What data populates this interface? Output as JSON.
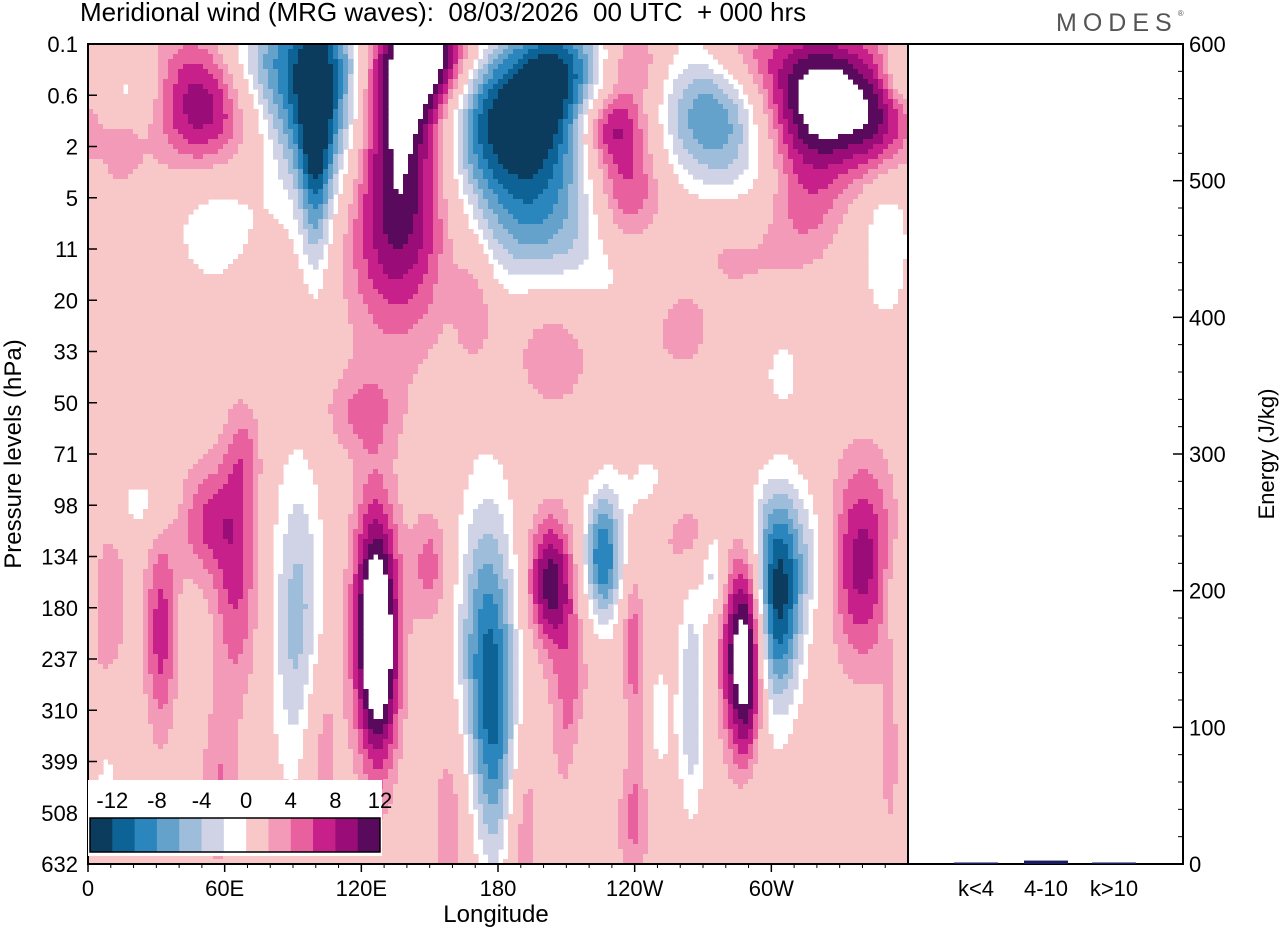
{
  "title": "Meridional wind (MRG waves):  08/03/2026  00 UTC  + 000 hrs",
  "logo": "MODES",
  "logo_mark": "®",
  "colors": {
    "neg": [
      "#0b3c5d",
      "#0e6396",
      "#2b86bd",
      "#64a2cc",
      "#9dbddb",
      "#d0d3e6"
    ],
    "zero": "#ffffff",
    "pos": [
      "#f8c8c8",
      "#f39ab9",
      "#e8609e",
      "#c7208a",
      "#9a0d78",
      "#5a0a5c"
    ],
    "bar": "#1a1a5e"
  },
  "chart_data": [
    {
      "type": "heatmap",
      "title": "Meridional wind (MRG waves)",
      "xlabel": "Longitude",
      "ylabel": "Pressure levels (hPa)",
      "x_ticks": [
        "0",
        "60E",
        "120E",
        "180",
        "120W",
        "60W"
      ],
      "y_ticks": [
        "0.1",
        "0.6",
        "2",
        "5",
        "11",
        "20",
        "33",
        "50",
        "71",
        "98",
        "134",
        "180",
        "237",
        "310",
        "399",
        "508",
        "632"
      ],
      "colorbar_labels": [
        "-12",
        "-8",
        "-4",
        "0",
        "4",
        "8",
        "12"
      ],
      "colorbar_levels": [
        -14,
        -12,
        -10,
        -8,
        -6,
        -4,
        -2,
        2,
        4,
        6,
        8,
        10,
        12,
        14
      ],
      "blobs": [
        {
          "lon": 102,
          "lev": 0.8,
          "amp": -15,
          "w": 16,
          "h": 1.5
        },
        {
          "lon": 72,
          "lev": 0.4,
          "amp": -6,
          "w": 14,
          "h": 0.8
        },
        {
          "lon": 100,
          "lev": 2.5,
          "amp": -8,
          "w": 5,
          "h": 1.5
        },
        {
          "lon": 140,
          "lev": 0.6,
          "amp": 13,
          "w": 14,
          "h": 1.1
        },
        {
          "lon": 156,
          "lev": 0.1,
          "amp": 8,
          "w": 10,
          "h": 0.8
        },
        {
          "lon": 136,
          "lev": 3.0,
          "amp": 12,
          "w": 16,
          "h": 1.8
        },
        {
          "lon": 52,
          "lev": 1.2,
          "amp": 11,
          "w": 16,
          "h": 1.0
        },
        {
          "lon": 182,
          "lev": 1.4,
          "amp": -13,
          "w": 24,
          "h": 1.0
        },
        {
          "lon": 206,
          "lev": 0.4,
          "amp": -10,
          "w": 14,
          "h": 0.9
        },
        {
          "lon": 194,
          "lev": 3.2,
          "amp": -9,
          "w": 20,
          "h": 1.2
        },
        {
          "lon": 228,
          "lev": 1.6,
          "amp": 8,
          "w": 10,
          "h": 0.5
        },
        {
          "lon": 236,
          "lev": 2.9,
          "amp": 9,
          "w": 12,
          "h": 1.0
        },
        {
          "lon": 276,
          "lev": 1.4,
          "amp": -11,
          "w": 18,
          "h": 1.1
        },
        {
          "lon": 240,
          "lev": 0.4,
          "amp": 5,
          "w": 10,
          "h": 0.6
        },
        {
          "lon": 322,
          "lev": 1.1,
          "amp": 15,
          "w": 20,
          "h": 1.0
        },
        {
          "lon": 286,
          "lev": 0.2,
          "amp": 5,
          "w": 14,
          "h": 0.6
        },
        {
          "lon": 348,
          "lev": 1.6,
          "amp": 5,
          "w": 10,
          "h": 0.7
        },
        {
          "lon": 357,
          "lev": 0.6,
          "amp": -5,
          "w": 6,
          "h": 0.4
        },
        {
          "lon": 18,
          "lev": 1.0,
          "amp": -4,
          "w": 10,
          "h": 0.5
        },
        {
          "lon": 15,
          "lev": 2.0,
          "amp": 3,
          "w": 6,
          "h": 0.6
        },
        {
          "lon": 55,
          "lev": 3.2,
          "amp": -4,
          "w": 14,
          "h": 1.1
        },
        {
          "lon": 293,
          "lev": 3.0,
          "amp": -3,
          "w": 14,
          "h": 0.8
        },
        {
          "lon": 314,
          "lev": 3.2,
          "amp": 4,
          "w": 12,
          "h": 0.8
        },
        {
          "lon": 284,
          "lev": 3.6,
          "amp": 4,
          "w": 18,
          "h": 1.0
        },
        {
          "lon": 232,
          "lev": 4.0,
          "amp": -4,
          "w": 18,
          "h": 1.0
        },
        {
          "lon": 350,
          "lev": 3.8,
          "amp": -4,
          "w": 8,
          "h": 1.2
        },
        {
          "lon": 204,
          "lev": 5.8,
          "amp": 4,
          "w": 14,
          "h": 1.0
        },
        {
          "lon": 260,
          "lev": 5.6,
          "amp": 4,
          "w": 8,
          "h": 0.5
        },
        {
          "lon": 120,
          "lev": 7.2,
          "amp": 4,
          "w": 12,
          "h": 0.6
        },
        {
          "lon": 170,
          "lev": 5.0,
          "amp": 4,
          "w": 6,
          "h": 0.9
        },
        {
          "lon": 305,
          "lev": 6.4,
          "amp": -3,
          "w": 6,
          "h": 0.5
        },
        {
          "lon": 68,
          "lev": 8.0,
          "amp": 4,
          "w": 6,
          "h": 0.8
        },
        {
          "lon": 246,
          "lev": 9.0,
          "amp": -3,
          "w": 10,
          "h": 1.0
        },
        {
          "lon": 292,
          "lev": 9.4,
          "amp": -3,
          "w": 10,
          "h": 0.7
        },
        {
          "lon": 52,
          "lev": 9.3,
          "amp": 6,
          "w": 10,
          "h": 0.8
        },
        {
          "lon": 24,
          "lev": 9.0,
          "amp": -3,
          "w": 12,
          "h": 0.5
        },
        {
          "lon": 262,
          "lev": 9.6,
          "amp": 4,
          "w": 14,
          "h": 0.6
        },
        {
          "lon": 8,
          "lev": 10.8,
          "amp": 4,
          "w": 7,
          "h": 1.2
        },
        {
          "lon": 32,
          "lev": 11.5,
          "amp": 7,
          "w": 5,
          "h": 1.4
        },
        {
          "lon": 65,
          "lev": 10.6,
          "amp": 6,
          "w": 7,
          "h": 1.5
        },
        {
          "lon": 92,
          "lev": 11.3,
          "amp": -7,
          "w": 8,
          "h": 2.2
        },
        {
          "lon": 126,
          "lev": 11.2,
          "amp": 13,
          "w": 7,
          "h": 1.7
        },
        {
          "lon": 128,
          "lev": 12.2,
          "amp": 7,
          "w": 6,
          "h": 1.5
        },
        {
          "lon": 150,
          "lev": 10.2,
          "amp": 5,
          "w": 6,
          "h": 0.8
        },
        {
          "lon": 175,
          "lev": 12.0,
          "amp": -11,
          "w": 9,
          "h": 2.2
        },
        {
          "lon": 180,
          "lev": 14.0,
          "amp": -5,
          "w": 6,
          "h": 1.8
        },
        {
          "lon": 203,
          "lev": 10.5,
          "amp": 11,
          "w": 7,
          "h": 0.9
        },
        {
          "lon": 212,
          "lev": 12.8,
          "amp": 5,
          "w": 6,
          "h": 1.4
        },
        {
          "lon": 226,
          "lev": 10.0,
          "amp": -12,
          "w": 6,
          "h": 0.9
        },
        {
          "lon": 239,
          "lev": 12.0,
          "amp": 7,
          "w": 4,
          "h": 1.2
        },
        {
          "lon": 239,
          "lev": 14.8,
          "amp": 6,
          "w": 5,
          "h": 1.2
        },
        {
          "lon": 237,
          "lev": 13.4,
          "amp": -4,
          "w": 4,
          "h": 1.3
        },
        {
          "lon": 217,
          "lev": 14.2,
          "amp": -3,
          "w": 4,
          "h": 1.0
        },
        {
          "lon": 275,
          "lev": 10.2,
          "amp": -6,
          "w": 4,
          "h": 0.7
        },
        {
          "lon": 265,
          "lev": 12.8,
          "amp": -6,
          "w": 4,
          "h": 1.6
        },
        {
          "lon": 250,
          "lev": 13.2,
          "amp": -3,
          "w": 5,
          "h": 1.1
        },
        {
          "lon": 289,
          "lev": 12.1,
          "amp": 15,
          "w": 5,
          "h": 1.5
        },
        {
          "lon": 281,
          "lev": 11.8,
          "amp": 5,
          "w": 4,
          "h": 1.3
        },
        {
          "lon": 303,
          "lev": 10.9,
          "amp": -14,
          "w": 7,
          "h": 1.4
        },
        {
          "lon": 315,
          "lev": 10.0,
          "amp": -4,
          "w": 8,
          "h": 1.0
        },
        {
          "lon": 340,
          "lev": 10.1,
          "amp": 9,
          "w": 10,
          "h": 1.4
        },
        {
          "lon": 358,
          "lev": 10.6,
          "amp": -4,
          "w": 6,
          "h": 0.7
        },
        {
          "lon": 8,
          "lev": 14.8,
          "amp": -3,
          "w": 4,
          "h": 1.0
        },
        {
          "lon": 58,
          "lev": 14.5,
          "amp": 4,
          "w": 6,
          "h": 1.2
        },
        {
          "lon": 102,
          "lev": 13.6,
          "amp": 4,
          "w": 6,
          "h": 1.3
        },
        {
          "lon": 160,
          "lev": 15.0,
          "amp": 4,
          "w": 6,
          "h": 1.5
        },
        {
          "lon": 190,
          "lev": 15.2,
          "amp": 4,
          "w": 6,
          "h": 1.4
        },
        {
          "lon": 292,
          "lev": 14.9,
          "amp": -3,
          "w": 6,
          "h": 1.3
        },
        {
          "lon": 352,
          "lev": 14.0,
          "amp": 3,
          "w": 3,
          "h": 1.1
        }
      ]
    },
    {
      "type": "bar",
      "ylabel": "Energy (J/kg)",
      "categories": [
        "k<4",
        "4-10",
        "k>10"
      ],
      "values": [
        0.5,
        2.5,
        0.5
      ],
      "y_ticks": [
        "0",
        "100",
        "200",
        "300",
        "400",
        "500",
        "600"
      ],
      "ylim": [
        0,
        600
      ]
    }
  ]
}
